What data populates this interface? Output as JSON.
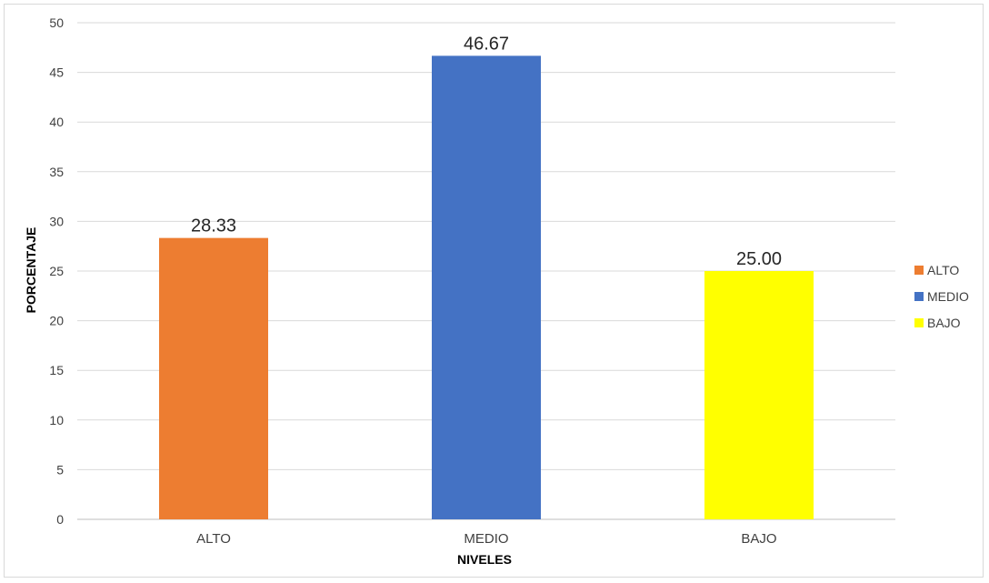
{
  "chart_data": {
    "type": "bar",
    "categories": [
      "ALTO",
      "MEDIO",
      "BAJO"
    ],
    "values": [
      28.33,
      46.67,
      25.0
    ],
    "data_labels": [
      "28.33",
      "46.67",
      "25.00"
    ],
    "colors": [
      "#ED7D31",
      "#4472C4",
      "#FFFF00"
    ],
    "xlabel": "NIVELES",
    "ylabel": "PORCENTAJE",
    "ylim": [
      0,
      50
    ],
    "yticks": [
      0,
      5,
      10,
      15,
      20,
      25,
      30,
      35,
      40,
      45,
      50
    ],
    "grid": true,
    "gridline_color": "#d9d9d9",
    "legend": {
      "placement": "right",
      "entries": [
        "ALTO",
        "MEDIO",
        "BAJO"
      ]
    }
  }
}
